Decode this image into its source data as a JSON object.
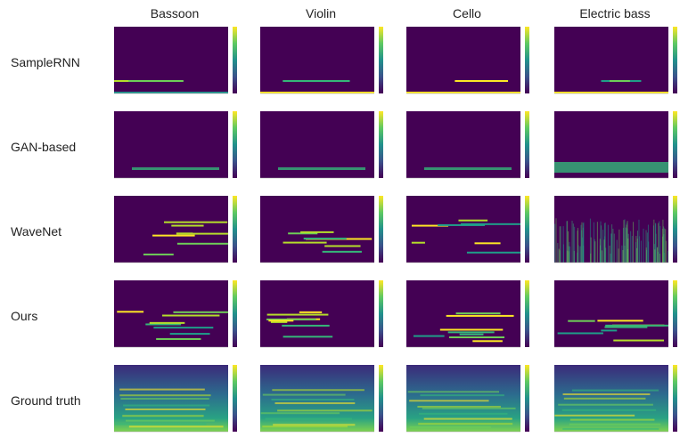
{
  "header": {
    "columns": [
      "Bassoon",
      "Violin",
      "Cello",
      "Electric bass"
    ]
  },
  "rows": [
    {
      "label": "SampleRNN"
    },
    {
      "label": "GAN-based"
    },
    {
      "label": "WaveNet"
    },
    {
      "label": "Ours"
    },
    {
      "label": "Ground truth"
    }
  ]
}
